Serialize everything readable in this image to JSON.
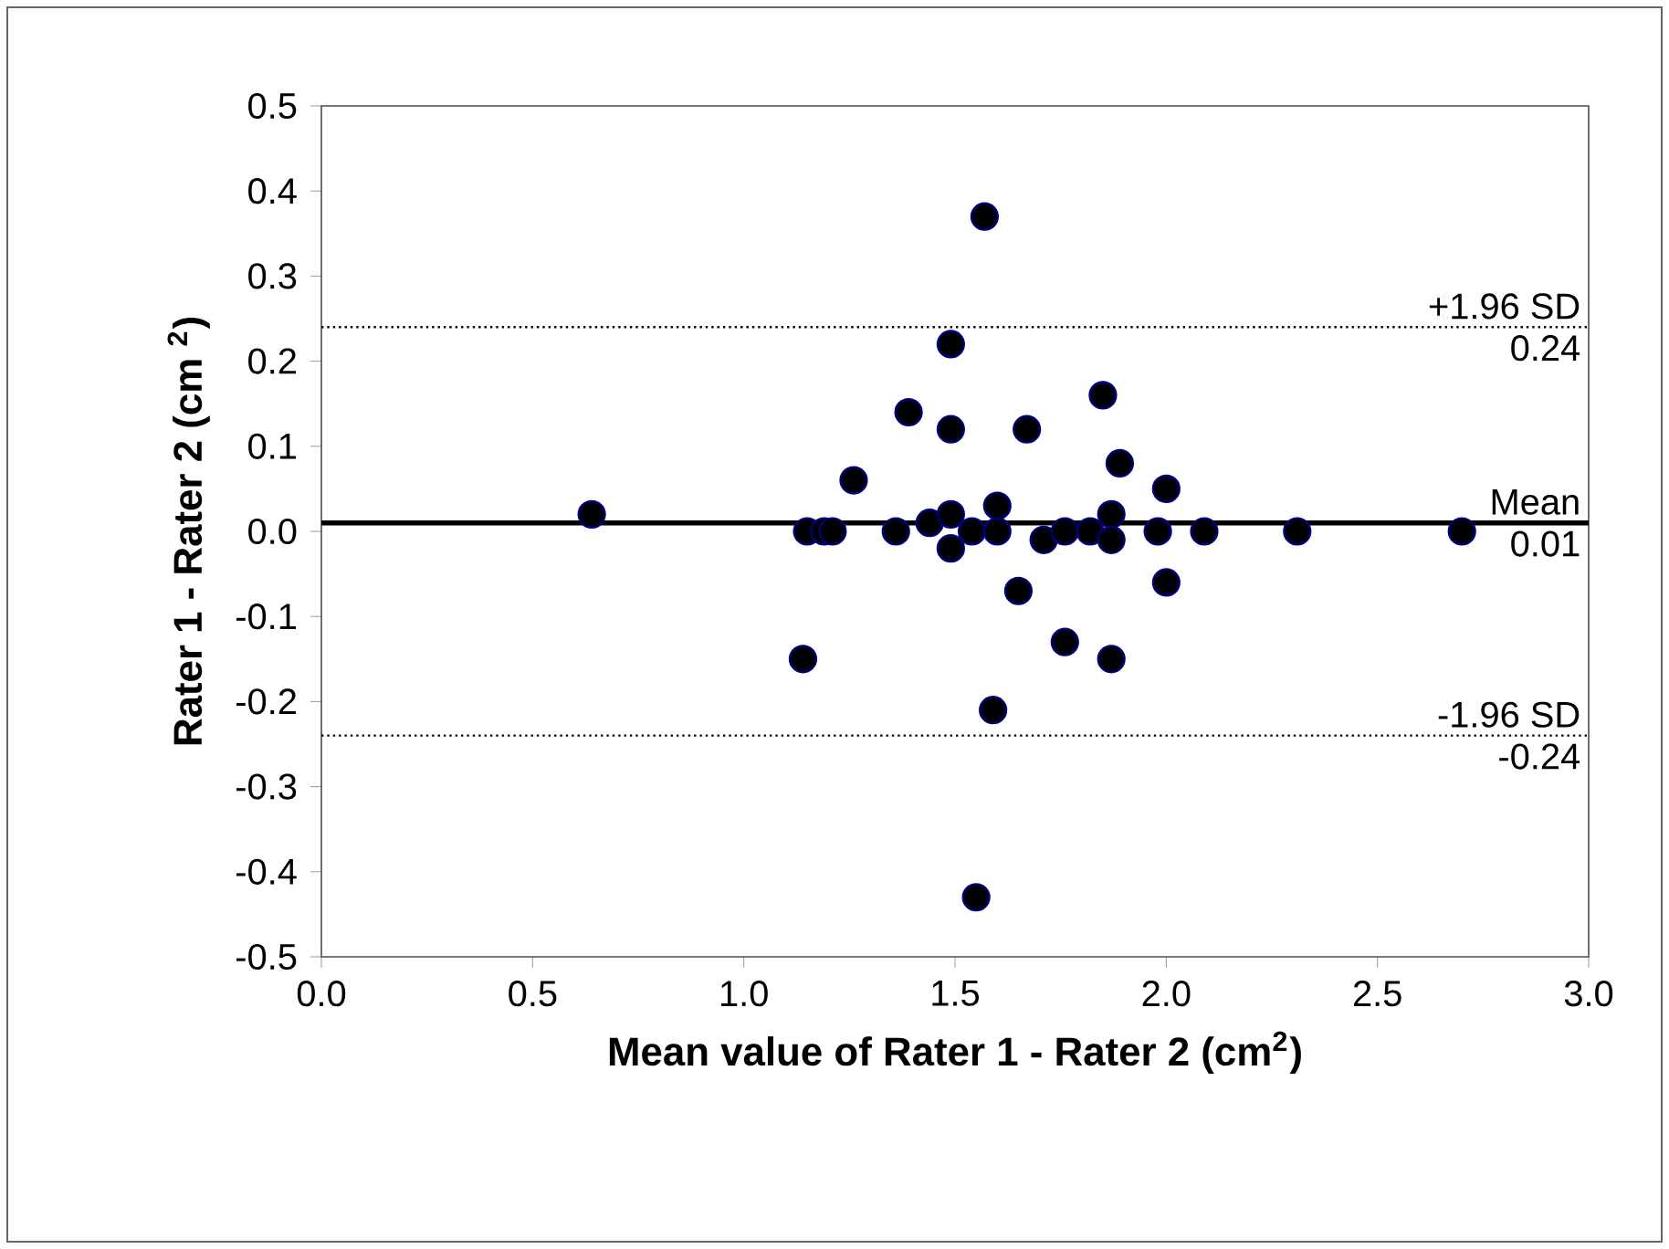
{
  "chart_data": {
    "type": "scatter",
    "xlabel": "Mean  value of Rater 1 - Rater 2 (cm$^{2}$)",
    "ylabel": "Rater 1 - Rater 2 (cm $^{2}$)",
    "xlim": [
      0,
      3
    ],
    "ylim": [
      -0.5,
      0.5
    ],
    "xticks": [
      {
        "value": 0,
        "label": "0.0"
      },
      0.5,
      {
        "value": 1,
        "label": "1.0"
      },
      1.5,
      {
        "value": 2,
        "label": "2.0"
      },
      2.5,
      {
        "value": 3,
        "label": "3.0"
      }
    ],
    "yticks": [
      -0.5,
      -0.4,
      -0.3,
      -0.2,
      -0.1,
      {
        "value": 0,
        "label": "0.0"
      },
      0.1,
      0.2,
      0.3,
      0.4,
      0.5
    ],
    "marker": "circle",
    "grid": false,
    "series": [
      {
        "color": "#000000",
        "x": [
          0.64,
          1.15,
          1.19,
          1.21,
          1.26,
          1.14,
          1.36,
          1.39,
          1.49,
          1.57,
          1.49,
          1.44,
          1.49,
          1.49,
          1.54,
          1.6,
          1.6,
          1.67,
          1.65,
          1.59,
          1.55,
          1.71,
          1.76,
          1.82,
          1.85,
          1.89,
          1.87,
          1.87,
          1.76,
          1.87,
          2.0,
          1.98,
          2.0,
          2.09,
          2.31,
          2.7
        ],
        "values": [
          0.02,
          0.0,
          0.0,
          0.0,
          0.06,
          -0.15,
          0.0,
          0.14,
          0.22,
          0.37,
          0.12,
          0.01,
          0.02,
          -0.02,
          0.0,
          0.03,
          0.0,
          0.12,
          -0.07,
          -0.21,
          -0.43,
          -0.01,
          0.0,
          0.0,
          0.16,
          0.08,
          0.02,
          -0.01,
          -0.13,
          -0.15,
          0.05,
          0.0,
          -0.06,
          0.0,
          0.0,
          0.0
        ]
      }
    ],
    "ref_lines": [
      {
        "axis": "y",
        "value": 0.24,
        "label": "+1.96 SD",
        "line_style": "dotted",
        "color": "#000000"
      },
      {
        "axis": "y",
        "value": 0.01,
        "label": "Mean",
        "line_style": "solid",
        "color": "#000000"
      },
      {
        "axis": "y",
        "value": -0.24,
        "label": "-1.96 SD",
        "line_style": "dotted",
        "color": "#000000"
      }
    ],
    "annotations": [
      "0.24",
      "0.01",
      "-0.24"
    ]
  }
}
